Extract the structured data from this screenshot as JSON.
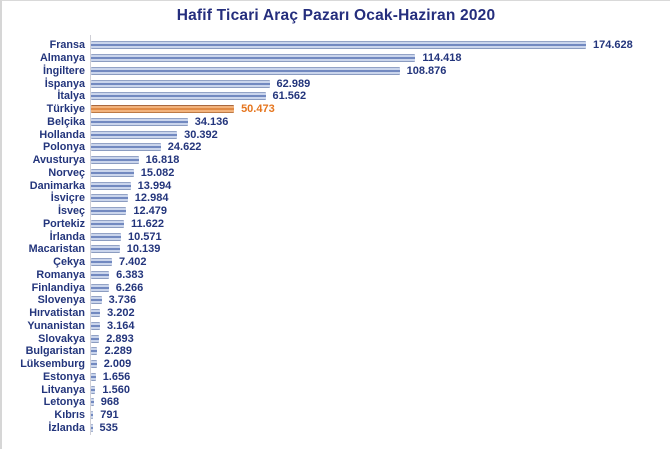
{
  "chart_data": {
    "type": "bar",
    "orientation": "horizontal",
    "title": "Hafif Ticari Araç Pazarı Ocak-Haziran 2020",
    "xlabel": "",
    "ylabel": "",
    "xlim": [
      0,
      180000
    ],
    "grid": false,
    "legend": "none",
    "value_labels": "outside-end",
    "colors": {
      "title_text": "#252e7d",
      "axis_text": "#23357c",
      "value_text": "#23357c",
      "axis_line": "#cfcfd6",
      "bar_fill_light": "#cad5ec",
      "bar_stripe": "#7289c0",
      "bar_edge": "#8b9cc0",
      "highlight_bar_fill": "#f2b37d",
      "highlight_bar_stripe": "#e08a45",
      "highlight_bar_edge": "#a8683f",
      "highlight_value_text": "#e5751e"
    },
    "highlight_category": "Türkiye",
    "series": [
      {
        "country": "Fransa",
        "value": 174628,
        "label": "174.628",
        "highlight": false
      },
      {
        "country": "Almanya",
        "value": 114418,
        "label": "114.418",
        "highlight": false
      },
      {
        "country": "İngiltere",
        "value": 108876,
        "label": "108.876",
        "highlight": false
      },
      {
        "country": "İspanya",
        "value": 62989,
        "label": "62.989",
        "highlight": false
      },
      {
        "country": "İtalya",
        "value": 61562,
        "label": "61.562",
        "highlight": false
      },
      {
        "country": "Türkiye",
        "value": 50473,
        "label": "50.473",
        "highlight": true
      },
      {
        "country": "Belçika",
        "value": 34136,
        "label": "34.136",
        "highlight": false
      },
      {
        "country": "Hollanda",
        "value": 30392,
        "label": "30.392",
        "highlight": false
      },
      {
        "country": "Polonya",
        "value": 24622,
        "label": "24.622",
        "highlight": false
      },
      {
        "country": "Avusturya",
        "value": 16818,
        "label": "16.818",
        "highlight": false
      },
      {
        "country": "Norveç",
        "value": 15082,
        "label": "15.082",
        "highlight": false
      },
      {
        "country": "Danimarka",
        "value": 13994,
        "label": "13.994",
        "highlight": false
      },
      {
        "country": "İsviçre",
        "value": 12984,
        "label": "12.984",
        "highlight": false
      },
      {
        "country": "İsveç",
        "value": 12479,
        "label": "12.479",
        "highlight": false
      },
      {
        "country": "Portekiz",
        "value": 11622,
        "label": "11.622",
        "highlight": false
      },
      {
        "country": "İrlanda",
        "value": 10571,
        "label": "10.571",
        "highlight": false
      },
      {
        "country": "Macaristan",
        "value": 10139,
        "label": "10.139",
        "highlight": false
      },
      {
        "country": "Çekya",
        "value": 7402,
        "label": "7.402",
        "highlight": false
      },
      {
        "country": "Romanya",
        "value": 6383,
        "label": "6.383",
        "highlight": false
      },
      {
        "country": "Finlandiya",
        "value": 6266,
        "label": "6.266",
        "highlight": false
      },
      {
        "country": "Slovenya",
        "value": 3736,
        "label": "3.736",
        "highlight": false
      },
      {
        "country": "Hırvatistan",
        "value": 3202,
        "label": "3.202",
        "highlight": false
      },
      {
        "country": "Yunanistan",
        "value": 3164,
        "label": "3.164",
        "highlight": false
      },
      {
        "country": "Slovakya",
        "value": 2893,
        "label": "2.893",
        "highlight": false
      },
      {
        "country": "Bulgaristan",
        "value": 2289,
        "label": "2.289",
        "highlight": false
      },
      {
        "country": "Lüksemburg",
        "value": 2009,
        "label": "2.009",
        "highlight": false
      },
      {
        "country": "Estonya",
        "value": 1656,
        "label": "1.656",
        "highlight": false
      },
      {
        "country": "Litvanya",
        "value": 1560,
        "label": "1.560",
        "highlight": false
      },
      {
        "country": "Letonya",
        "value": 968,
        "label": "968",
        "highlight": false
      },
      {
        "country": "Kıbrıs",
        "value": 791,
        "label": "791",
        "highlight": false
      },
      {
        "country": "İzlanda",
        "value": 535,
        "label": "535",
        "highlight": false
      }
    ]
  }
}
